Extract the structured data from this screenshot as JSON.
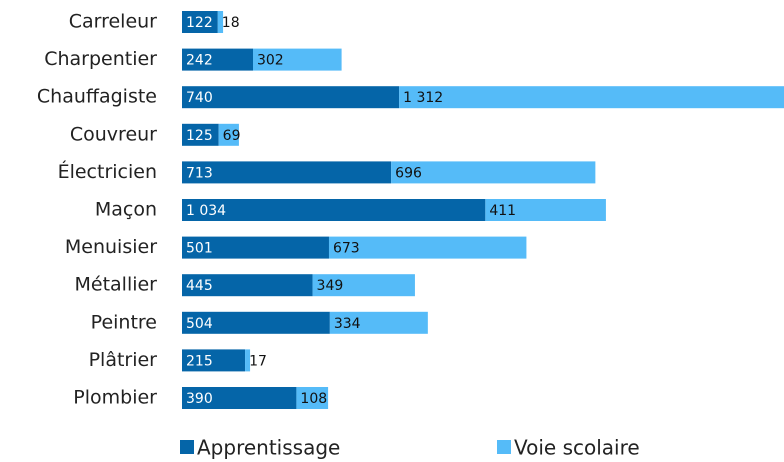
{
  "chart_data": {
    "type": "stacked-bar-horizontal",
    "categories": [
      "Carreleur",
      "Charpentier",
      "Chauffagiste",
      "Couvreur",
      "Électricien",
      "Maçon",
      "Menuisier",
      "Métallier",
      "Peintre",
      "Plâtrier",
      "Plombier"
    ],
    "series": [
      {
        "name": "Apprentissage",
        "color": "#0565a8",
        "label_color": "#ffffff",
        "values": [
          122,
          242,
          740,
          125,
          713,
          1034,
          501,
          445,
          504,
          215,
          390
        ],
        "value_labels": [
          "122",
          "242",
          "740",
          "125",
          "713",
          "1 034",
          "501",
          "445",
          "504",
          "215",
          "390"
        ]
      },
      {
        "name": "Voie scolaire",
        "color": "#55bbf8",
        "label_color": "#111111",
        "values": [
          18,
          302,
          1312,
          69,
          696,
          411,
          673,
          349,
          334,
          17,
          108
        ],
        "value_labels": [
          "18",
          "302",
          "1 312",
          "69",
          "696",
          "411",
          "673",
          "349",
          "334",
          "17",
          "108"
        ]
      }
    ],
    "legend": "bottom"
  }
}
